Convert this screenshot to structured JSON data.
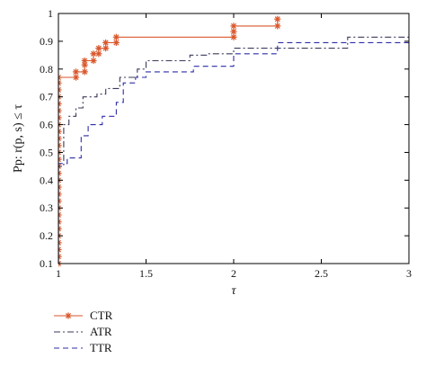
{
  "chart_data": {
    "type": "line",
    "title": "",
    "xlabel": "τ",
    "ylabel": "Pp: r(p, s) ≤ τ",
    "xlim": [
      1,
      3
    ],
    "ylim": [
      0.1,
      1.0
    ],
    "xticks": [
      1,
      1.5,
      2,
      2.5,
      3
    ],
    "xtick_labels": [
      "1",
      "1.5",
      "2",
      "2.5",
      "3"
    ],
    "yticks": [
      0.1,
      0.2,
      0.3,
      0.4,
      0.5,
      0.6,
      0.7,
      0.8,
      0.9,
      1
    ],
    "ytick_labels": [
      "0.1",
      "0.2",
      "0.3",
      "0.4",
      "0.5",
      "0.6",
      "0.7",
      "0.8",
      "0.9",
      "1"
    ],
    "grid": false,
    "legend_position": "bottom-left",
    "series": [
      {
        "name": "CTR",
        "color": "#d9572b",
        "dash": "solid",
        "marker": "asterisk",
        "x": [
          1.0,
          1.0,
          1.0,
          1.0,
          1.0,
          1.0,
          1.0,
          1.0,
          1.0,
          1.0,
          1.0,
          1.0,
          1.0,
          1.0,
          1.0,
          1.0,
          1.0,
          1.0,
          1.0,
          1.0,
          1.0,
          1.0,
          1.0,
          1.0,
          1.0,
          1.0,
          1.0,
          1.0,
          1.0,
          1.0,
          1.0,
          1.1,
          1.1,
          1.15,
          1.15,
          1.2,
          1.2,
          1.23,
          1.23,
          1.27,
          1.27,
          1.33,
          1.33,
          2.0,
          2.0,
          2.25,
          2.25
        ],
        "y": [
          0.1,
          0.125,
          0.15,
          0.175,
          0.2,
          0.225,
          0.25,
          0.275,
          0.3,
          0.325,
          0.35,
          0.375,
          0.4,
          0.425,
          0.45,
          0.475,
          0.5,
          0.525,
          0.55,
          0.575,
          0.6,
          0.625,
          0.65,
          0.675,
          0.7,
          0.725,
          0.75,
          0.77,
          0.77,
          0.77,
          0.77,
          0.77,
          0.79,
          0.79,
          0.83,
          0.83,
          0.855,
          0.855,
          0.875,
          0.875,
          0.895,
          0.895,
          0.915,
          0.915,
          0.955,
          0.955,
          0.98
        ],
        "drawn_markers_at": [
          [
            1.0,
            0.1
          ],
          [
            1.0,
            0.125
          ],
          [
            1.0,
            0.15
          ],
          [
            1.0,
            0.175
          ],
          [
            1.0,
            0.2
          ],
          [
            1.0,
            0.225
          ],
          [
            1.0,
            0.25
          ],
          [
            1.0,
            0.275
          ],
          [
            1.0,
            0.3
          ],
          [
            1.0,
            0.325
          ],
          [
            1.0,
            0.35
          ],
          [
            1.0,
            0.375
          ],
          [
            1.0,
            0.4
          ],
          [
            1.0,
            0.425
          ],
          [
            1.0,
            0.45
          ],
          [
            1.0,
            0.475
          ],
          [
            1.0,
            0.5
          ],
          [
            1.0,
            0.525
          ],
          [
            1.0,
            0.55
          ],
          [
            1.0,
            0.575
          ],
          [
            1.0,
            0.6
          ],
          [
            1.0,
            0.625
          ],
          [
            1.0,
            0.65
          ],
          [
            1.0,
            0.675
          ],
          [
            1.0,
            0.7
          ],
          [
            1.0,
            0.725
          ],
          [
            1.0,
            0.75
          ],
          [
            1.0,
            0.77
          ],
          [
            1.1,
            0.77
          ],
          [
            1.1,
            0.79
          ],
          [
            1.15,
            0.79
          ],
          [
            1.15,
            0.815
          ],
          [
            1.15,
            0.83
          ],
          [
            1.2,
            0.83
          ],
          [
            1.2,
            0.855
          ],
          [
            1.23,
            0.855
          ],
          [
            1.23,
            0.875
          ],
          [
            1.27,
            0.875
          ],
          [
            1.27,
            0.895
          ],
          [
            1.33,
            0.895
          ],
          [
            1.33,
            0.915
          ],
          [
            2.0,
            0.915
          ],
          [
            2.0,
            0.935
          ],
          [
            2.0,
            0.955
          ],
          [
            2.25,
            0.955
          ],
          [
            2.25,
            0.98
          ]
        ]
      },
      {
        "name": "ATR",
        "color": "#3a3a5a",
        "dash": "dashdot",
        "x": [
          1.0,
          1.0,
          1.03,
          1.03,
          1.06,
          1.06,
          1.1,
          1.1,
          1.14,
          1.14,
          1.22,
          1.22,
          1.27,
          1.27,
          1.35,
          1.35,
          1.45,
          1.45,
          1.5,
          1.5,
          1.75,
          1.75,
          1.85,
          1.85,
          2.0,
          2.0,
          2.65,
          2.65,
          3.0
        ],
        "y": [
          0.1,
          0.45,
          0.45,
          0.6,
          0.6,
          0.63,
          0.63,
          0.66,
          0.66,
          0.7,
          0.7,
          0.71,
          0.71,
          0.73,
          0.73,
          0.77,
          0.77,
          0.8,
          0.8,
          0.83,
          0.83,
          0.85,
          0.85,
          0.855,
          0.855,
          0.875,
          0.875,
          0.915,
          0.915
        ]
      },
      {
        "name": "TTR",
        "color": "#2c2ca8",
        "dash": "dashed",
        "x": [
          1.0,
          1.0,
          1.05,
          1.05,
          1.13,
          1.13,
          1.17,
          1.17,
          1.25,
          1.25,
          1.33,
          1.33,
          1.37,
          1.37,
          1.44,
          1.44,
          1.5,
          1.5,
          1.77,
          1.77,
          2.0,
          2.0,
          2.25,
          2.25,
          3.0
        ],
        "y": [
          0.1,
          0.46,
          0.46,
          0.48,
          0.48,
          0.56,
          0.56,
          0.6,
          0.6,
          0.63,
          0.63,
          0.68,
          0.68,
          0.75,
          0.75,
          0.77,
          0.77,
          0.79,
          0.79,
          0.81,
          0.81,
          0.855,
          0.855,
          0.895,
          0.895
        ]
      }
    ]
  }
}
